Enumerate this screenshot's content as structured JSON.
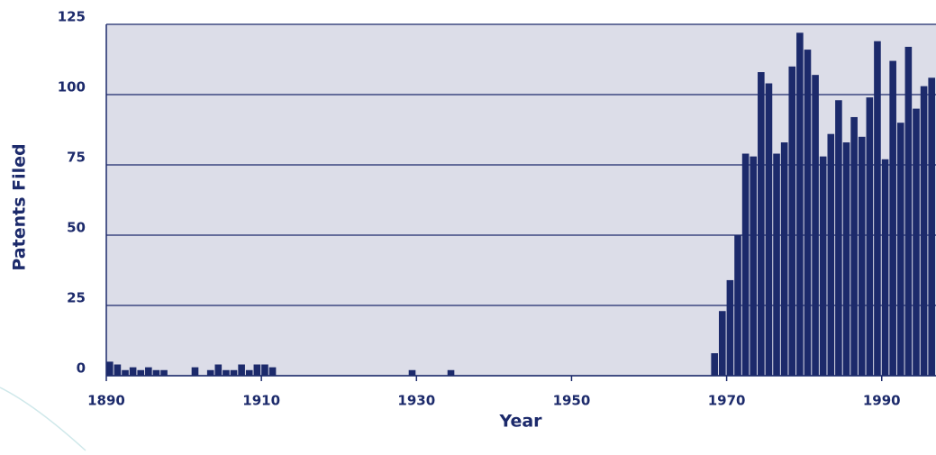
{
  "chart_data": {
    "type": "bar",
    "x": [
      1890,
      1891,
      1892,
      1893,
      1894,
      1895,
      1896,
      1897,
      1898,
      1899,
      1900,
      1901,
      1902,
      1903,
      1904,
      1905,
      1906,
      1907,
      1908,
      1909,
      1910,
      1911,
      1912,
      1913,
      1914,
      1915,
      1916,
      1917,
      1918,
      1919,
      1920,
      1921,
      1922,
      1923,
      1924,
      1925,
      1926,
      1927,
      1928,
      1929,
      1930,
      1931,
      1932,
      1933,
      1934,
      1935,
      1936,
      1937,
      1938,
      1939,
      1940,
      1941,
      1942,
      1943,
      1944,
      1945,
      1946,
      1947,
      1948,
      1949,
      1950,
      1951,
      1952,
      1953,
      1954,
      1955,
      1956,
      1957,
      1958,
      1959,
      1960,
      1961,
      1962,
      1963,
      1964,
      1965,
      1966,
      1967,
      1968,
      1969,
      1970,
      1971,
      1972,
      1973,
      1974,
      1975,
      1976,
      1977,
      1978,
      1979,
      1980,
      1981,
      1982,
      1983,
      1984,
      1985,
      1986,
      1987,
      1988,
      1989,
      1990,
      1991,
      1992,
      1993,
      1994,
      1995,
      1996
    ],
    "values": [
      5,
      4,
      2,
      3,
      2,
      3,
      2,
      2,
      0,
      0,
      0,
      3,
      0,
      2,
      4,
      2,
      2,
      4,
      2,
      4,
      4,
      3,
      0,
      0,
      0,
      0,
      0,
      0,
      0,
      0,
      0,
      0,
      0,
      0,
      0,
      0,
      0,
      0,
      0,
      2,
      0,
      0,
      0,
      0,
      2,
      0,
      0,
      0,
      0,
      0,
      0,
      0,
      0,
      0,
      0,
      0,
      0,
      0,
      0,
      0,
      0,
      0,
      0,
      0,
      0,
      0,
      0,
      0,
      0,
      0,
      0,
      0,
      0,
      0,
      0,
      0,
      0,
      0,
      8,
      23,
      34,
      50,
      79,
      78,
      108,
      104,
      79,
      83,
      110,
      122,
      116,
      107,
      78,
      86,
      98,
      83,
      92,
      85,
      99,
      119,
      77,
      112,
      90,
      117,
      95,
      103,
      106
    ],
    "color": "#1c2a6b",
    "x_label": "Year",
    "y_label": "Patents Filed",
    "xlim": [
      1890,
      1997
    ],
    "xticks": [
      1890,
      1910,
      1930,
      1950,
      1970,
      1990
    ],
    "ylim": [
      0,
      125
    ],
    "yticks": [
      0,
      25,
      50,
      75,
      100,
      125
    ],
    "grid": true
  }
}
